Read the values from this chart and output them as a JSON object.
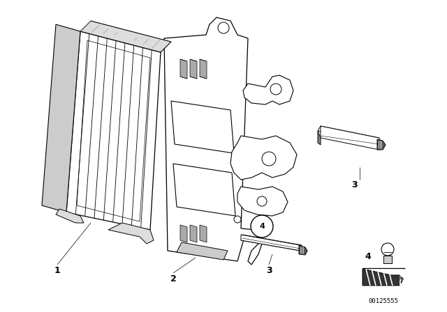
{
  "bg_color": "#ffffff",
  "fig_width": 6.4,
  "fig_height": 4.48,
  "dpi": 100,
  "line_color": "#000000",
  "part_number": "00125555"
}
